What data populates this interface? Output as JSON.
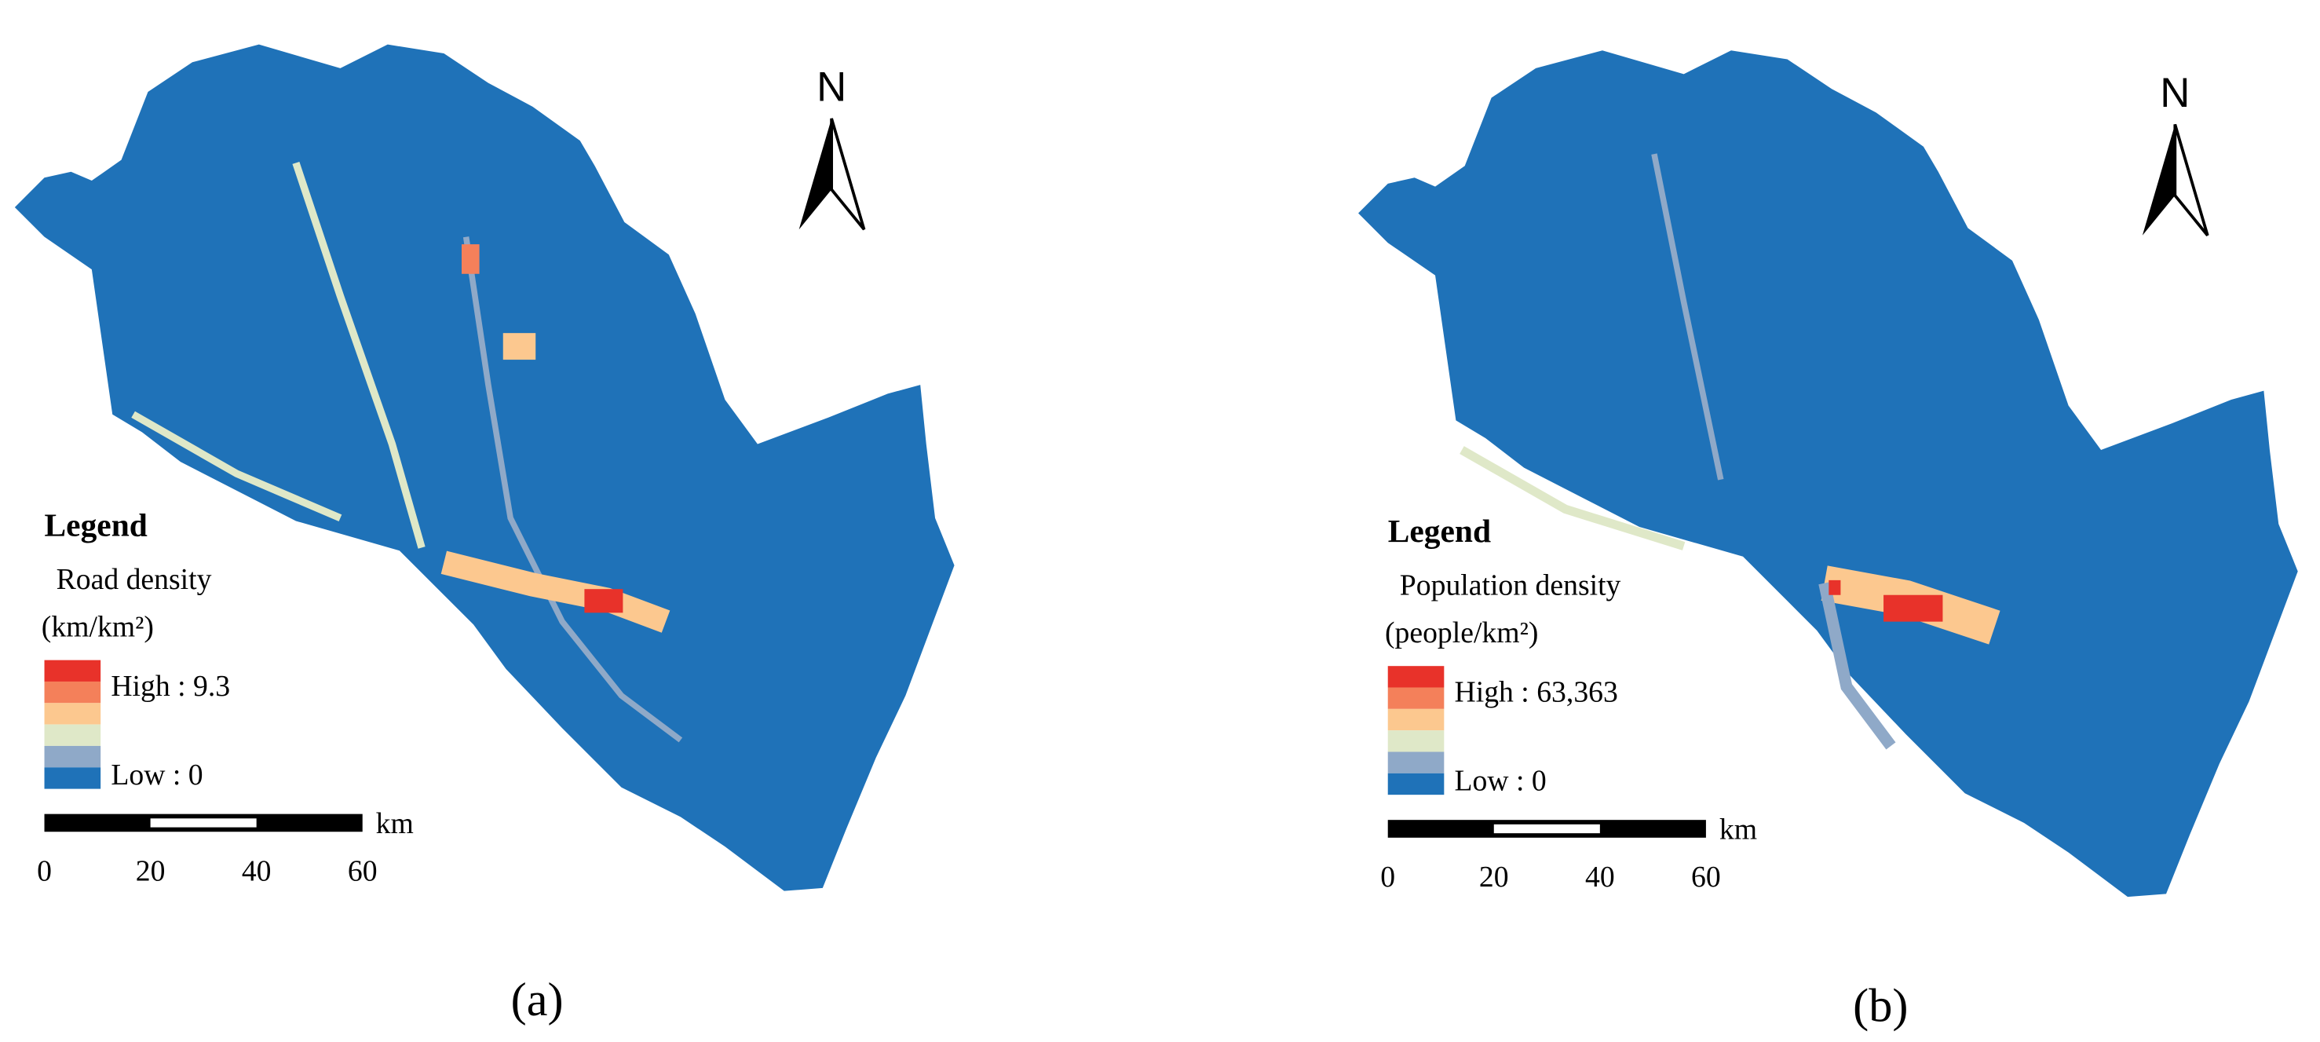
{
  "panels": [
    {
      "legend": {
        "title": "Legend",
        "field": "Road density",
        "unit": "(km/km²)",
        "high": "High : 9.3",
        "low": "Low : 0",
        "colors": [
          "#e8322a",
          "#f4805a",
          "#fcc88f",
          "#dfe8c8",
          "#8fa9c8",
          "#1f72b8"
        ]
      },
      "scale_bar": {
        "ticks": [
          0,
          20,
          40,
          60
        ],
        "unit": "km"
      },
      "north": "N",
      "caption": "(a)"
    },
    {
      "legend": {
        "title": "Legend",
        "field": "Population density",
        "unit": "(people/km²)",
        "high": "High : 63,363",
        "low": "Low : 0",
        "colors": [
          "#e8322a",
          "#f4805a",
          "#fcc88f",
          "#dfe8c8",
          "#8fa9c8",
          "#1f72b8"
        ]
      },
      "scale_bar": {
        "ticks": [
          0,
          20,
          40,
          60
        ],
        "unit": "km"
      },
      "north": "N",
      "caption": "(b)"
    }
  ]
}
